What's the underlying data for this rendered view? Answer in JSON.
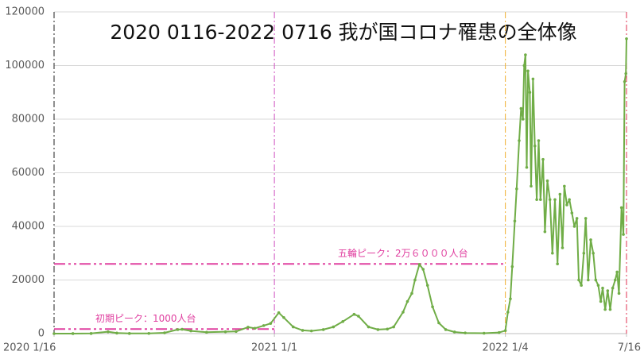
{
  "chart_data": {
    "type": "line",
    "title": "2020 0116-2022 0716 我が国コロナ罹患の全体像",
    "x": [
      "2020-01-16",
      "2020-02-15",
      "2020-03-15",
      "2020-04-11",
      "2020-04-25",
      "2020-05-15",
      "2020-06-15",
      "2020-07-10",
      "2020-07-31",
      "2020-08-07",
      "2020-08-21",
      "2020-09-15",
      "2020-10-15",
      "2020-11-01",
      "2020-11-20",
      "2020-12-01",
      "2020-12-15",
      "2020-12-26",
      "2021-01-08",
      "2021-01-16",
      "2021-01-31",
      "2021-02-15",
      "2021-03-01",
      "2021-03-20",
      "2021-04-05",
      "2021-04-20",
      "2021-05-08",
      "2021-05-15",
      "2021-05-31",
      "2021-06-15",
      "2021-06-30",
      "2021-07-10",
      "2021-07-25",
      "2021-08-01",
      "2021-08-08",
      "2021-08-13",
      "2021-08-20",
      "2021-08-26",
      "2021-09-02",
      "2021-09-10",
      "2021-09-20",
      "2021-10-01",
      "2021-10-15",
      "2021-11-01",
      "2021-12-01",
      "2021-12-25",
      "2022-01-04",
      "2022-01-08",
      "2022-01-12",
      "2022-01-15",
      "2022-01-19",
      "2022-01-22",
      "2022-01-26",
      "2022-01-29",
      "2022-02-01",
      "2022-02-03",
      "2022-02-05",
      "2022-02-07",
      "2022-02-09",
      "2022-02-12",
      "2022-02-14",
      "2022-02-17",
      "2022-02-20",
      "2022-02-23",
      "2022-02-26",
      "2022-03-01",
      "2022-03-05",
      "2022-03-08",
      "2022-03-12",
      "2022-03-16",
      "2022-03-20",
      "2022-03-24",
      "2022-03-28",
      "2022-04-01",
      "2022-04-05",
      "2022-04-08",
      "2022-04-12",
      "2022-04-16",
      "2022-04-20",
      "2022-04-24",
      "2022-04-28",
      "2022-05-01",
      "2022-05-05",
      "2022-05-09",
      "2022-05-12",
      "2022-05-16",
      "2022-05-20",
      "2022-05-24",
      "2022-05-28",
      "2022-06-01",
      "2022-06-05",
      "2022-06-08",
      "2022-06-12",
      "2022-06-16",
      "2022-06-20",
      "2022-06-24",
      "2022-06-28",
      "2022-07-01",
      "2022-07-04",
      "2022-07-08",
      "2022-07-11",
      "2022-07-13",
      "2022-07-15",
      "2022-07-16"
    ],
    "values": [
      0,
      10,
      50,
      700,
      200,
      50,
      60,
      300,
      1500,
      1600,
      1000,
      500,
      700,
      800,
      2400,
      2000,
      3000,
      3800,
      7800,
      6000,
      2500,
      1200,
      1000,
      1500,
      2500,
      4500,
      7200,
      6500,
      2500,
      1500,
      1700,
      2500,
      8000,
      12000,
      15000,
      20000,
      25800,
      24000,
      18000,
      10000,
      4000,
      1500,
      600,
      250,
      150,
      400,
      1100,
      8000,
      13000,
      25000,
      42000,
      54000,
      72000,
      84000,
      80000,
      100000,
      104000,
      62000,
      98000,
      90000,
      55000,
      95000,
      70000,
      50000,
      72000,
      50000,
      65000,
      38000,
      57000,
      50000,
      30000,
      50000,
      26000,
      52000,
      32000,
      55000,
      48000,
      50000,
      45000,
      40000,
      43000,
      20000,
      18000,
      30000,
      43000,
      20000,
      35000,
      30000,
      20000,
      18000,
      12000,
      17000,
      9000,
      16000,
      9000,
      17000,
      20000,
      23000,
      15000,
      47000,
      37000,
      94000,
      97000,
      110000
    ],
    "color": "#70ad47",
    "xlim": [
      "2020-01-16",
      "2022-07-16"
    ],
    "xticks": [
      {
        "value": "2020-01-16",
        "label": "2020 1/16"
      },
      {
        "value": "2021-01-01",
        "label": "2021 1/1"
      },
      {
        "value": "2022-01-04",
        "label": "2022 1/4"
      },
      {
        "value": "2022-07-16",
        "label": "7/16"
      }
    ],
    "ylim": [
      0,
      120000
    ],
    "yticks": [
      0,
      20000,
      40000,
      60000,
      80000,
      100000,
      120000
    ],
    "grid": true,
    "vlines": [
      {
        "x": "2020-01-16",
        "color": "#222222"
      },
      {
        "x": "2021-01-01",
        "color": "#d050c0"
      },
      {
        "x": "2022-01-04",
        "color": "#f0b030"
      },
      {
        "x": "2022-07-16",
        "color": "#e03050"
      }
    ],
    "annotations": [
      {
        "text": "初期ピーク：1000人台",
        "value": 1700,
        "color": "#e040a0"
      },
      {
        "text": "五輪ピーク：2万６０００人台",
        "value": 26000,
        "color": "#e040a0"
      }
    ]
  }
}
